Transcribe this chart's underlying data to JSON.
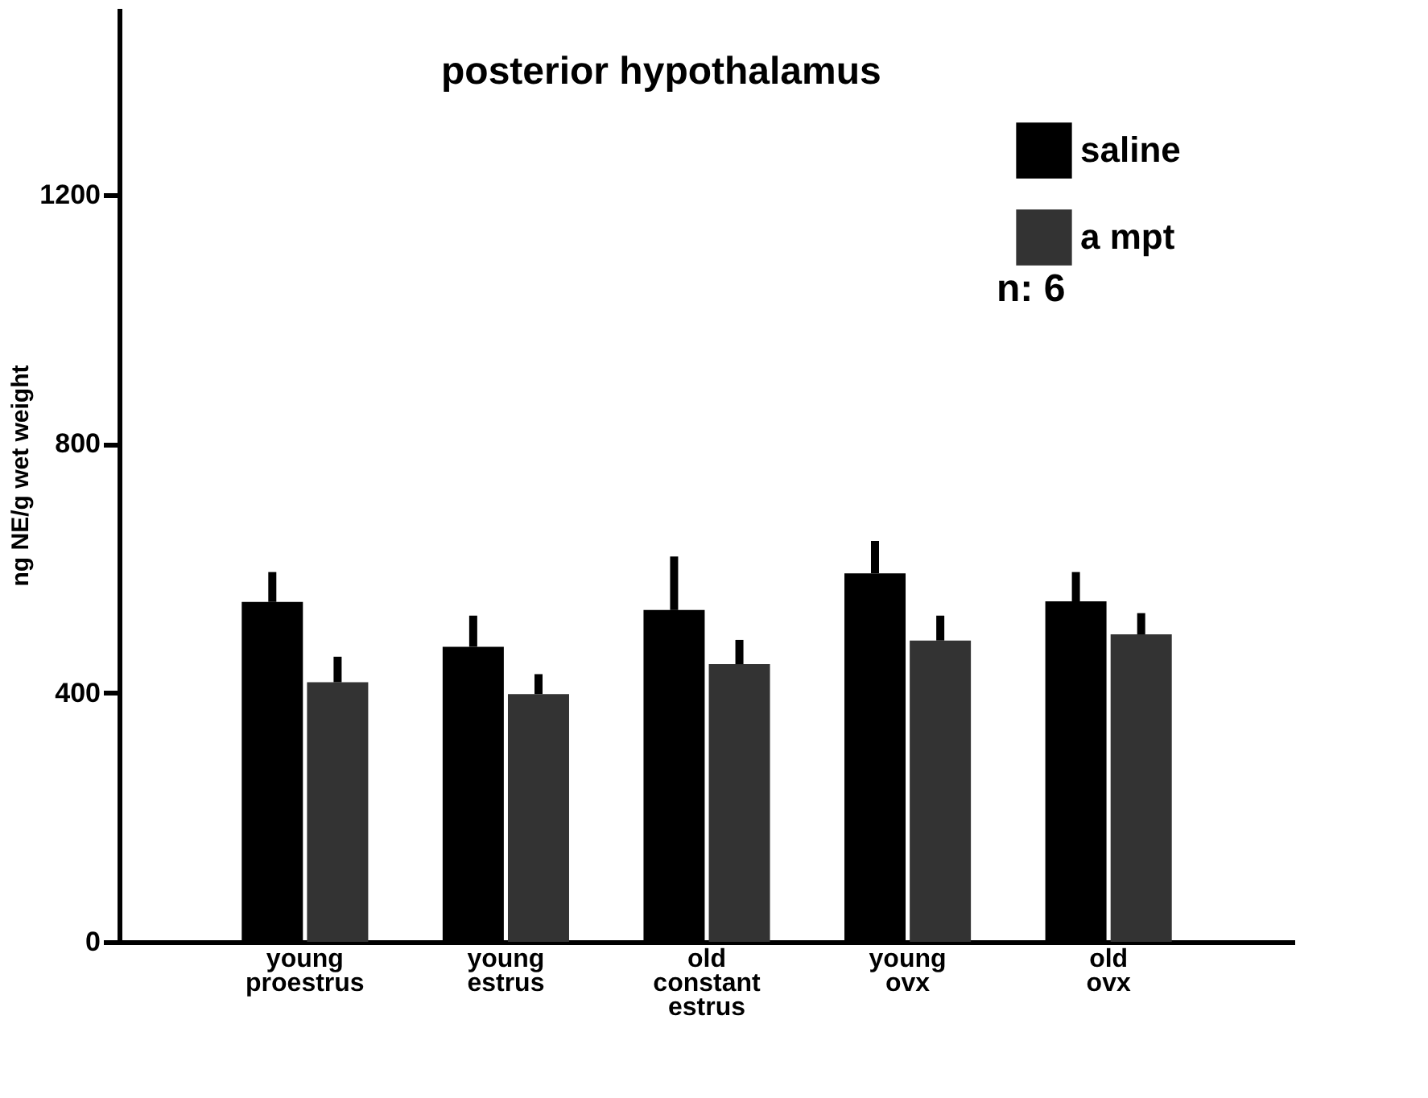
{
  "chart_data": {
    "type": "bar",
    "title": "posterior    hypothalamus",
    "ylabel": "ng NE/g  wet weight",
    "categories": [
      "young\nproestrus",
      "young\nestrus",
      "old\nconstant\nestrus",
      "young\novx",
      "old\novx"
    ],
    "series": [
      {
        "name": "saline",
        "color": "#000000",
        "values": [
          546,
          474,
          533,
          592,
          547
        ],
        "errors": [
          [
            546,
            594
          ],
          [
            474,
            524
          ],
          [
            533,
            619
          ],
          [
            592,
            644
          ],
          [
            547,
            594
          ]
        ]
      },
      {
        "name": "a mpt",
        "color": "#333333",
        "values": [
          417,
          398,
          446,
          484,
          494
        ],
        "errors": [
          [
            417,
            458
          ],
          [
            398,
            430
          ],
          [
            446,
            485
          ],
          [
            484,
            524
          ],
          [
            494,
            528
          ]
        ]
      }
    ],
    "ylim": [
      0,
      1500
    ],
    "yticks": [
      0,
      400,
      800,
      1200
    ],
    "grid": false,
    "legend": "top right",
    "annotations": [
      "n: 6"
    ]
  }
}
